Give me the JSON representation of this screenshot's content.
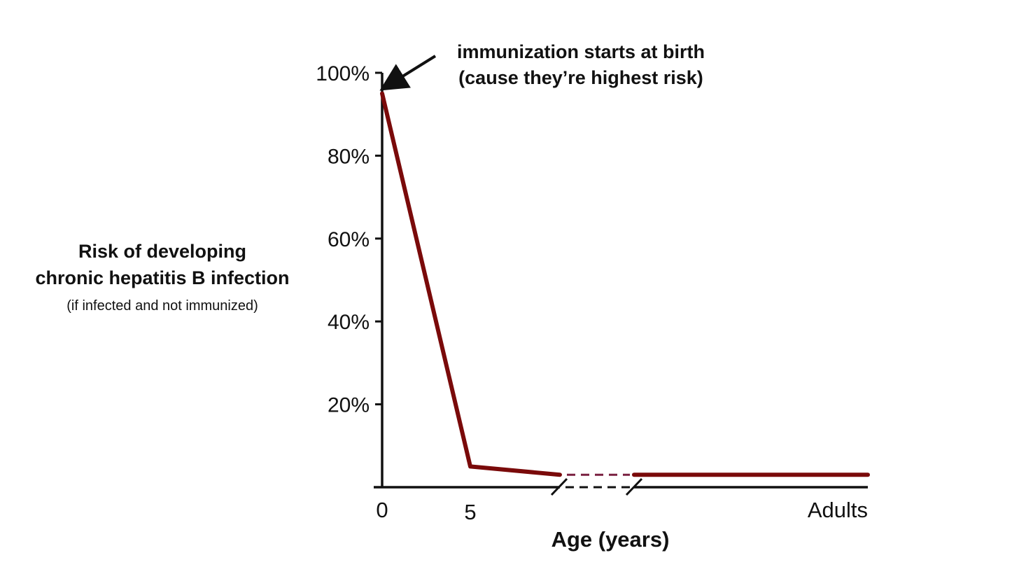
{
  "chart_data": {
    "type": "line",
    "ylabel": "Risk of developing",
    "ylabel_line2": "chronic hepatitis B infection",
    "ylabel_note": "(if infected and not immunized)",
    "xlabel": "Age (years)",
    "ylim": [
      0,
      100
    ],
    "y_ticks": [
      20,
      40,
      60,
      80,
      100
    ],
    "y_tick_labels": [
      "20%",
      "40%",
      "60%",
      "80%",
      "100%"
    ],
    "x_tick_labels": [
      "0",
      "5",
      "Adults"
    ],
    "axis_break": true,
    "grid": false,
    "legend": "none",
    "series": [
      {
        "color": "#7a0a0a",
        "points": [
          {
            "x": "0",
            "y": 95
          },
          {
            "x": "5",
            "y": 5
          },
          {
            "x": "Adults",
            "y": 3
          }
        ]
      }
    ],
    "annotations": [
      {
        "line1": "immunization starts at birth",
        "line2": "(cause they’re highest risk)",
        "points_to": {
          "x": "0",
          "y": 95
        }
      }
    ]
  },
  "colors": {
    "line": "#7a0a0a",
    "axis": "#111111",
    "break_segment": "#7a2040"
  }
}
